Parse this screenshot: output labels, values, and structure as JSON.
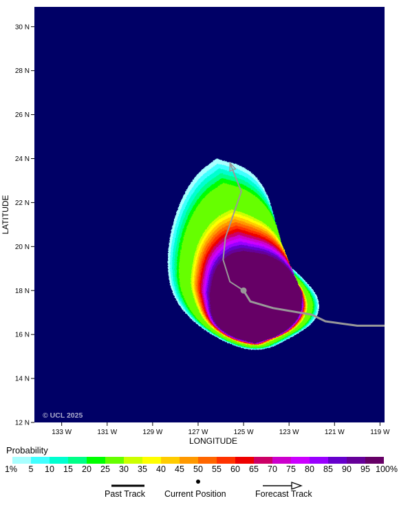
{
  "map": {
    "x_axis_label": "LONGITUDE",
    "y_axis_label": "LATITUDE",
    "lon_ticks": [
      "133 W",
      "131 W",
      "129 W",
      "127 W",
      "125 W",
      "123 W",
      "121 W",
      "119 W"
    ],
    "lat_ticks": [
      "30 N",
      "28 N",
      "26 N",
      "24 N",
      "22 N",
      "20 N",
      "18 N",
      "16 N",
      "14 N",
      "12 N"
    ],
    "watermark": "© UCL 2025",
    "ocean_color": "#000066"
  },
  "legend": {
    "title": "Probability",
    "tick_labels": [
      "1%",
      "5",
      "10",
      "15",
      "20",
      "25",
      "30",
      "35",
      "40",
      "45",
      "50",
      "55",
      "60",
      "65",
      "70",
      "75",
      "80",
      "85",
      "90",
      "95",
      "100%"
    ],
    "colors": [
      "#a8ffff",
      "#40ffff",
      "#00ffd0",
      "#00ff88",
      "#00ff00",
      "#66ff00",
      "#ccff00",
      "#ffff00",
      "#ffcc00",
      "#ff9900",
      "#ff6600",
      "#ff3300",
      "#ee0000",
      "#cc0066",
      "#cc00cc",
      "#cc00ff",
      "#9900ff",
      "#6600cc",
      "#660099",
      "#660066"
    ],
    "past_track_label": "Past Track",
    "current_position_label": "Current Position",
    "forecast_track_label": "Forecast Track"
  },
  "chart_data": {
    "type": "probability_map",
    "x_axis": {
      "label": "LONGITUDE",
      "range": [
        -134.2,
        -118.8
      ],
      "ticks": [
        -133,
        -131,
        -129,
        -127,
        -125,
        -123,
        -121,
        -119
      ]
    },
    "y_axis": {
      "label": "LATITUDE",
      "range": [
        12,
        30.9
      ],
      "ticks": [
        12,
        14,
        16,
        18,
        20,
        22,
        24,
        26,
        28,
        30
      ]
    },
    "current_position": {
      "lon": -125.0,
      "lat": 18.0
    },
    "past_track": [
      [
        -118.8,
        16.4
      ],
      [
        -120.0,
        16.4
      ],
      [
        -121.4,
        16.6
      ],
      [
        -122.0,
        16.9
      ],
      [
        -123.7,
        17.2
      ],
      [
        -124.7,
        17.5
      ],
      [
        -125.0,
        18.0
      ]
    ],
    "forecast_track": [
      [
        -125.0,
        18.0
      ],
      [
        -125.6,
        18.4
      ],
      [
        -125.9,
        19.4
      ],
      [
        -125.8,
        20.4
      ],
      [
        -125.1,
        22.5
      ],
      [
        -125.6,
        23.8
      ]
    ],
    "probability_bins": [
      1,
      5,
      10,
      15,
      20,
      25,
      30,
      35,
      40,
      45,
      50,
      55,
      60,
      65,
      70,
      75,
      80,
      85,
      90,
      95,
      100
    ]
  }
}
